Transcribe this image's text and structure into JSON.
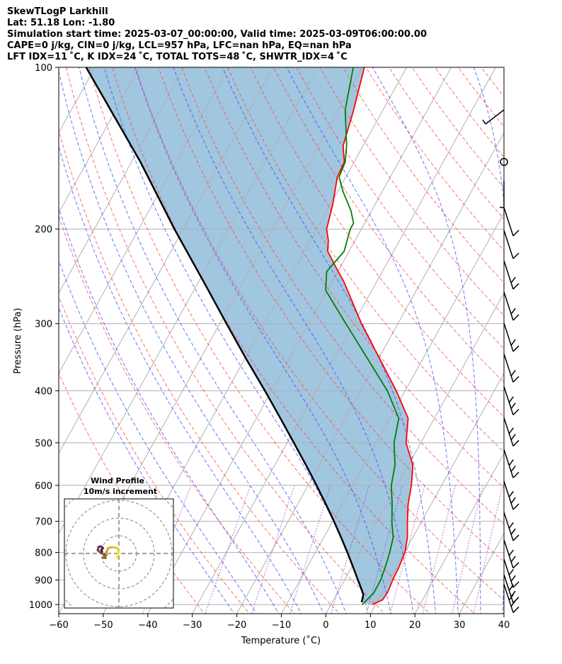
{
  "header": {
    "line1": "SkewTLogP Larkhill",
    "line2": "Lat: 51.18   Lon: -1.80",
    "line3": "Simulation start time: 2025-03-07_00:00:00, Valid time: 2025-03-09T06:00:00.00",
    "line4": "CAPE=0 j/kg, CIN=0 j/kg, LCL=957 hPa, LFC=nan hPa, EQ=nan hPa",
    "line5": "LFT IDX=11 ˚C, K IDX=24 ˚C, TOTAL TOTS=48 ˚C, SHWTR_IDX=4 ˚C"
  },
  "chart_data": {
    "type": "line",
    "subtype": "skew-t log-p",
    "xlabel": "Temperature (˚C)",
    "ylabel": "Pressure (hPa)",
    "xlim": [
      -60,
      40
    ],
    "ylim": [
      1040,
      100
    ],
    "yscale": "log",
    "grid": true,
    "x_ticks": [
      -60,
      -50,
      -40,
      -30,
      -20,
      -10,
      0,
      10,
      20,
      30,
      40
    ],
    "y_ticks": [
      100,
      200,
      300,
      400,
      500,
      600,
      700,
      800,
      900,
      1000
    ],
    "series": [
      {
        "role": "temperature",
        "color": "#ff0000",
        "points": [
          [
            1000,
            9.3
          ],
          [
            980,
            11.0
          ],
          [
            950,
            11.2
          ],
          [
            920,
            11.0
          ],
          [
            900,
            10.8
          ],
          [
            850,
            10.6
          ],
          [
            800,
            10.1
          ],
          [
            750,
            8.8
          ],
          [
            700,
            6.8
          ],
          [
            650,
            4.8
          ],
          [
            600,
            3.2
          ],
          [
            550,
            1.0
          ],
          [
            500,
            -3.3
          ],
          [
            450,
            -5.9
          ],
          [
            400,
            -12.0
          ],
          [
            350,
            -19.5
          ],
          [
            300,
            -28.2
          ],
          [
            250,
            -37.5
          ],
          [
            240,
            -39.9
          ],
          [
            220,
            -44.8
          ],
          [
            210,
            -46.0
          ],
          [
            200,
            -47.8
          ],
          [
            180,
            -49.5
          ],
          [
            160,
            -51.9
          ],
          [
            150,
            -52.2
          ],
          [
            140,
            -54.5
          ],
          [
            120,
            -56.6
          ],
          [
            110,
            -58.0
          ],
          [
            100,
            -59.5
          ]
        ]
      },
      {
        "role": "dewpoint",
        "color": "#008000",
        "points": [
          [
            1000,
            7.0
          ],
          [
            980,
            7.5
          ],
          [
            950,
            8.2
          ],
          [
            900,
            8.1
          ],
          [
            850,
            7.5
          ],
          [
            800,
            6.7
          ],
          [
            750,
            5.6
          ],
          [
            700,
            3.3
          ],
          [
            650,
            1.2
          ],
          [
            600,
            -1.3
          ],
          [
            550,
            -3.0
          ],
          [
            500,
            -6.0
          ],
          [
            450,
            -8.0
          ],
          [
            400,
            -14.0
          ],
          [
            350,
            -22.2
          ],
          [
            300,
            -31.7
          ],
          [
            260,
            -40.4
          ],
          [
            240,
            -42.5
          ],
          [
            220,
            -41.1
          ],
          [
            200,
            -42.5
          ],
          [
            195,
            -42.5
          ],
          [
            185,
            -44.6
          ],
          [
            170,
            -48.9
          ],
          [
            160,
            -51.5
          ],
          [
            150,
            -52.0
          ],
          [
            140,
            -53.7
          ],
          [
            120,
            -58.5
          ],
          [
            100,
            -62.0
          ]
        ]
      },
      {
        "role": "parcel",
        "color": "#000000",
        "points": [
          [
            990,
            6.6
          ],
          [
            957,
            6.0
          ],
          [
            900,
            3.0
          ],
          [
            850,
            0.2
          ],
          [
            800,
            -2.8
          ],
          [
            750,
            -6.1
          ],
          [
            700,
            -9.7
          ],
          [
            650,
            -13.7
          ],
          [
            600,
            -18.1
          ],
          [
            550,
            -23.0
          ],
          [
            500,
            -28.5
          ],
          [
            450,
            -34.6
          ],
          [
            400,
            -41.5
          ],
          [
            350,
            -49.5
          ],
          [
            300,
            -58.5
          ],
          [
            250,
            -69.0
          ],
          [
            200,
            -82.0
          ],
          [
            150,
            -98.0
          ],
          [
            100,
            -122.0
          ]
        ]
      }
    ],
    "inset": {
      "title": "Wind Profile",
      "subtitle": "10m/s increment",
      "hodograph_uv": [
        [
          -1.0,
          -2.5
        ],
        [
          -0.5,
          0.5
        ],
        [
          -0.3,
          2.5
        ],
        [
          -1.5,
          3.2
        ],
        [
          -4.0,
          3.5
        ],
        [
          -6.0,
          3.0
        ],
        [
          -7.0,
          1.0
        ],
        [
          -8.0,
          -0.3
        ],
        [
          -7.0,
          -1.0
        ],
        [
          -8.5,
          -1.5
        ],
        [
          -9.0,
          -2.5
        ],
        [
          -7.5,
          -2.6
        ],
        [
          -8.0,
          -0.8
        ],
        [
          -10.5,
          0.5
        ],
        [
          -12.0,
          1.8
        ],
        [
          -11.5,
          3.7
        ],
        [
          -10.0,
          4.0
        ],
        [
          -9.0,
          3.0
        ],
        [
          -10.0,
          2.0
        ],
        [
          -9.5,
          1.0
        ]
      ]
    }
  }
}
